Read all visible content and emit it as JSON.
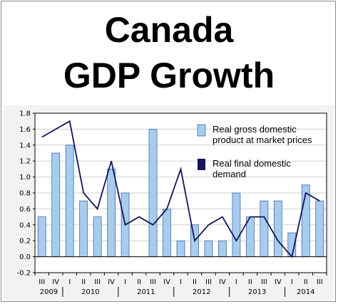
{
  "title": {
    "line1": "Canada",
    "line2": "GDP Growth"
  },
  "colors": {
    "bar_fill": "#a8ccee",
    "bar_stroke": "#3b6fa8",
    "line": "#14145a",
    "panel_background": "#f2f2f2",
    "plot_background": "#ffffff",
    "gridline": "#d0d0d0"
  },
  "chart_data": {
    "type": "bar",
    "title": "",
    "xlabel": "",
    "ylabel": "",
    "ylim": [
      -0.2,
      1.8
    ],
    "y_ticks": [
      "-0.2",
      "0.0",
      "0.2",
      "0.4",
      "0.6",
      "0.8",
      "1.0",
      "1.2",
      "1.4",
      "1.6",
      "1.8"
    ],
    "grid": true,
    "legend_position": "top-right",
    "categories": [
      "III",
      "IV",
      "I",
      "II",
      "III",
      "IV",
      "I",
      "II",
      "III",
      "IV",
      "I",
      "II",
      "III",
      "IV",
      "I",
      "II",
      "III",
      "IV",
      "I",
      "II",
      "III"
    ],
    "year_labels": [
      {
        "label": "2009",
        "span": [
          0,
          1
        ]
      },
      {
        "label": "2010",
        "span": [
          2,
          5
        ]
      },
      {
        "label": "2011",
        "span": [
          6,
          9
        ]
      },
      {
        "label": "2012",
        "span": [
          10,
          13
        ]
      },
      {
        "label": "2013",
        "span": [
          14,
          17
        ]
      },
      {
        "label": "2014",
        "span": [
          18,
          20
        ]
      }
    ],
    "series": [
      {
        "name": "Real gross domestic product at market prices",
        "type": "bar",
        "values": [
          0.5,
          1.3,
          1.4,
          0.7,
          0.5,
          1.1,
          0.8,
          null,
          1.6,
          0.6,
          0.2,
          0.4,
          0.2,
          0.2,
          0.8,
          0.5,
          0.7,
          0.7,
          0.3,
          0.9,
          0.7
        ]
      },
      {
        "name": "Real final domestic demand",
        "type": "line",
        "values": [
          1.5,
          1.6,
          1.7,
          0.8,
          0.6,
          1.2,
          0.4,
          0.5,
          0.4,
          0.6,
          1.1,
          0.2,
          0.4,
          0.5,
          0.2,
          0.5,
          0.5,
          0.2,
          0.0,
          0.8,
          0.7
        ]
      }
    ],
    "legend": {
      "bar_label_lines": [
        "Real gross domestic",
        "product at market prices"
      ],
      "line_label_lines": [
        "Real final domestic",
        "demand"
      ]
    }
  }
}
